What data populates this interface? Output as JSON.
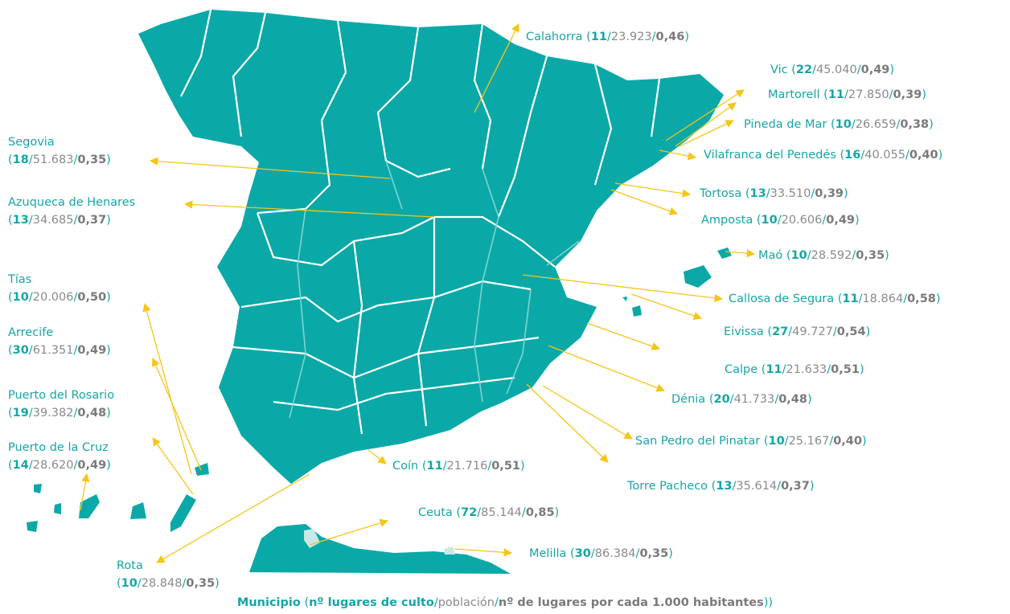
{
  "punctuation": {
    "open": "(",
    "slash": "/",
    "close": ")"
  },
  "labels": [
    {
      "name": "Calahorra",
      "places": "11",
      "population": "23.923",
      "ratio": "0,46"
    },
    {
      "name": "Vic",
      "places": "22",
      "population": "45.040",
      "ratio": "0,49"
    },
    {
      "name": "Martorell",
      "places": "11",
      "population": "27.850",
      "ratio": "0,39"
    },
    {
      "name": "Pineda de Mar",
      "places": "10",
      "population": "26.659",
      "ratio": "0,38"
    },
    {
      "name": "Vilafranca del Penedés",
      "places": "16",
      "population": "40.055",
      "ratio": "0,40"
    },
    {
      "name": "Tortosa",
      "places": "13",
      "population": "33.510",
      "ratio": "0,39"
    },
    {
      "name": "Amposta",
      "places": "10",
      "population": "20.606",
      "ratio": "0,49"
    },
    {
      "name": "Maó",
      "places": "10",
      "population": "28.592",
      "ratio": "0,35"
    },
    {
      "name": "Callosa de Segura",
      "places": "11",
      "population": "18.864",
      "ratio": "0,58"
    },
    {
      "name": "Eivissa",
      "places": "27",
      "population": "49.727",
      "ratio": "0,54"
    },
    {
      "name": "Calpe",
      "places": "11",
      "population": "21.633",
      "ratio": "0,51"
    },
    {
      "name": "Dénia",
      "places": "20",
      "population": "41.733",
      "ratio": "0,48"
    },
    {
      "name": "San Pedro del Pinatar",
      "places": "10",
      "population": "25.167",
      "ratio": "0,40"
    },
    {
      "name": "Torre Pacheco",
      "places": "13",
      "population": "35.614",
      "ratio": "0,37"
    },
    {
      "name": "Coín",
      "places": "11",
      "population": "21.716",
      "ratio": "0,51"
    },
    {
      "name": "Ceuta",
      "places": "72",
      "population": "85.144",
      "ratio": "0,85"
    },
    {
      "name": "Melilla",
      "places": "30",
      "population": "86.384",
      "ratio": "0,35"
    },
    {
      "name": "Rota",
      "places": "10",
      "population": "28.848",
      "ratio": "0,35"
    },
    {
      "name": "Segovia",
      "places": "18",
      "population": "51.683",
      "ratio": "0,35"
    },
    {
      "name": "Azuqueca de Henares",
      "places": "13",
      "population": "34.685",
      "ratio": "0,37"
    },
    {
      "name": "Tías",
      "places": "10",
      "population": "20.006",
      "ratio": "0,50"
    },
    {
      "name": "Arrecife",
      "places": "30",
      "population": "61.351",
      "ratio": "0,49"
    },
    {
      "name": "Puerto del Rosario",
      "places": "19",
      "population": "39.382",
      "ratio": "0,48"
    },
    {
      "name": "Puerto de la Cruz",
      "places": "14",
      "population": "28.620",
      "ratio": "0,49"
    }
  ],
  "legend": {
    "name": "Municipio",
    "places": "nº lugares de culto",
    "population": "población",
    "ratio": "nº de lugares por cada 1.000 habitantes"
  }
}
